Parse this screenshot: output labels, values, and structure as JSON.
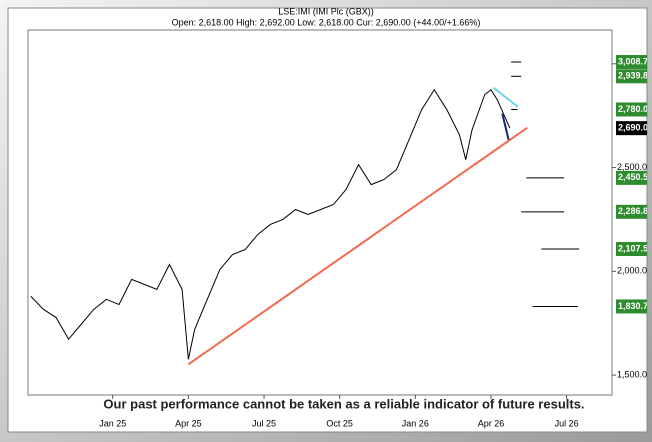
{
  "chart_data": {
    "type": "line",
    "title": "LSE:IMI (IMI Plc (GBX))",
    "subtitle": "Open: 2,618.00 High: 2,692.00 Low: 2,618.00 Cur: 2,690.00 (+44.00/+1.66%)",
    "annotation": "Our past performance cannot be taken as a reliable indicator of future results.",
    "color": "#000000",
    "x": [
      -3.25,
      -2.75,
      -2.25,
      -1.75,
      -1.25,
      -0.75,
      -0.25,
      0.25,
      0.75,
      1.25,
      1.75,
      2.25,
      2.75,
      3.0,
      3.25,
      3.75,
      4.25,
      4.75,
      5.25,
      5.75,
      6.25,
      6.75,
      7.25,
      7.75,
      8.25,
      8.75,
      9.25,
      9.75,
      10.25,
      10.75,
      11.25,
      11.75,
      12.25,
      12.75,
      13.25,
      13.75,
      14.0,
      14.25,
      14.75,
      15.0,
      15.25,
      15.75
    ],
    "values": [
      1880,
      1817,
      1778,
      1673,
      1745,
      1817,
      1865,
      1840,
      1961,
      1937,
      1913,
      2033,
      1913,
      1576,
      1720,
      1865,
      2009,
      2081,
      2105,
      2177,
      2226,
      2250,
      2298,
      2274,
      2298,
      2322,
      2394,
      2514,
      2418,
      2442,
      2490,
      2634,
      2779,
      2875,
      2779,
      2658,
      2538,
      2682,
      2851,
      2875,
      2827,
      2690
    ],
    "xlim": [
      -3.36,
      19.8
    ],
    "xticks": [
      {
        "value": 0,
        "label": "Jan 25"
      },
      {
        "value": 3,
        "label": "Apr 25"
      },
      {
        "value": 6,
        "label": "Jul 25"
      },
      {
        "value": 9,
        "label": "Oct 25"
      },
      {
        "value": 12,
        "label": "Jan 26"
      },
      {
        "value": 15,
        "label": "Apr 26"
      },
      {
        "value": 18,
        "label": "Jul 26"
      }
    ],
    "ylim": [
      1404,
      3163
    ],
    "yticks": [
      {
        "value": 1500,
        "label": "1,500.0"
      },
      {
        "value": 2000,
        "label": "2,000.0"
      },
      {
        "value": 2500,
        "label": "2,500.0"
      },
      {
        "value": 3000,
        "label": "3,000.0"
      }
    ],
    "current": {
      "value": 2690,
      "label": "2,690.0",
      "color": "#000000"
    },
    "level_color": "#2e8b2e",
    "levels": [
      {
        "value": 3008.7,
        "label": "3,008.7",
        "x": [
          15.8,
          16.2
        ]
      },
      {
        "value": 2939.8,
        "label": "2,939.8",
        "x": [
          15.8,
          16.2
        ]
      },
      {
        "value": 2780.0,
        "label": "2,780.0",
        "x": [
          15.8,
          16.05
        ]
      },
      {
        "value": 2450.5,
        "label": "2,450.5",
        "x": [
          16.4,
          17.9
        ]
      },
      {
        "value": 2286.8,
        "label": "2,286.8",
        "x": [
          16.2,
          17.9
        ]
      },
      {
        "value": 2107.5,
        "label": "2,107.5",
        "x": [
          17.0,
          18.5
        ]
      },
      {
        "value": 1830.7,
        "label": "1,830.7",
        "x": [
          16.65,
          18.45
        ]
      }
    ],
    "trendlines": [
      {
        "color": "#f26a50",
        "points": [
          [
            3.0,
            1552
          ],
          [
            16.44,
            2692
          ]
        ]
      },
      {
        "color": "#6fd6e8",
        "points": [
          [
            15.1,
            2885
          ],
          [
            16.07,
            2793
          ]
        ]
      },
      {
        "color": "#1a237e",
        "points": [
          [
            15.45,
            2760
          ],
          [
            15.7,
            2634
          ]
        ]
      }
    ]
  }
}
